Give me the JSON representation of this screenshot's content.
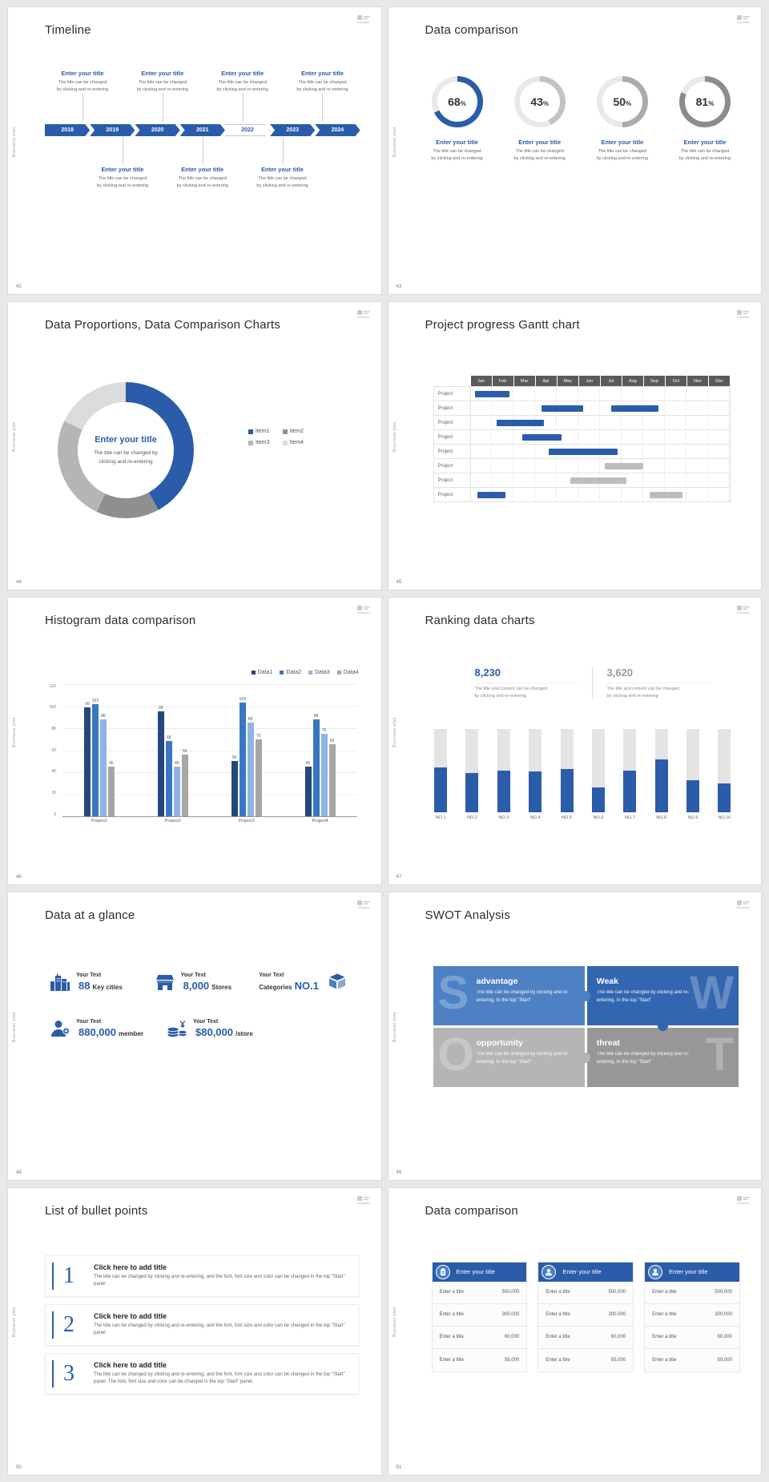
{
  "theme": {
    "accent_blue": "#2a5caa",
    "gray": "#b3b3b3",
    "dark_gray": "#8c8c8c",
    "track_gray": "#e9e9e9"
  },
  "common": {
    "vertical_label": "Business plan"
  },
  "s42": {
    "page": "42",
    "title": "Timeline",
    "item_title": "Enter your title",
    "item_body1": "The title can be changed",
    "item_body2": "by clicking and re-entering",
    "years": [
      {
        "label": "2018",
        "bg": "#2a5caa",
        "fg": "#ffffff"
      },
      {
        "label": "2019",
        "bg": "#2a5caa",
        "fg": "#ffffff"
      },
      {
        "label": "2020",
        "bg": "#2a5caa",
        "fg": "#ffffff"
      },
      {
        "label": "2021",
        "bg": "#2a5caa",
        "fg": "#ffffff"
      },
      {
        "label": "2022",
        "bg": "#ffffff",
        "fg": "#2a5caa",
        "outline": true
      },
      {
        "label": "2023",
        "bg": "#2a5caa",
        "fg": "#ffffff"
      },
      {
        "label": "2024",
        "bg": "#2a5caa",
        "fg": "#ffffff"
      }
    ]
  },
  "s43": {
    "page": "43",
    "title": "Data comparison",
    "item_title": "Enter your title",
    "item_body1": "The title can be changed",
    "item_body2": "by clicking and re-entering"
  },
  "s44": {
    "page": "44",
    "title": "Data Proportions, Data Comparison Charts",
    "center_title": "Enter your title",
    "center_body1": "The title can be changed by",
    "center_body2": "clicking and re-entering"
  },
  "s45": {
    "page": "45",
    "title": "Project progress Gantt chart"
  },
  "s46": {
    "page": "46",
    "title": "Histogram data comparison"
  },
  "s47": {
    "page": "47",
    "title": "Ranking data charts",
    "stat1": {
      "value": "8,230",
      "color": "#2a5caa"
    },
    "stat2": {
      "value": "3,620",
      "color": "#9b9b9b"
    },
    "stat_body1": "The title and content can be changed",
    "stat_body2": "by clicking and re-entering"
  },
  "s48": {
    "page": "48",
    "title": "Data at a glance",
    "items": [
      {
        "label": "Your Text",
        "prefix": "",
        "value": "88",
        "unit": "Key cities"
      },
      {
        "label": "Your Text",
        "prefix": "",
        "value": "8,000",
        "unit": "Stores"
      },
      {
        "label": "Your Text",
        "prefix": "Categories",
        "value": "NO.1",
        "unit": ""
      },
      {
        "label": "Your Text",
        "prefix": "",
        "value": "880,000",
        "unit": "member"
      },
      {
        "label": "Your Text",
        "prefix": "",
        "value": "$80,000",
        "unit": "/store"
      }
    ]
  },
  "s49": {
    "page": "49",
    "title": "SWOT Analysis",
    "tiles": [
      {
        "letter": "S",
        "heading": "advantage",
        "body": "The title can be changed by clicking and re-entering. In the top \"Start\"",
        "color": "#4e80c4"
      },
      {
        "letter": "W",
        "heading": "Weak",
        "body": "The title can be changed by clicking and re-entering. In the top \"Start\"",
        "color": "#3366b0"
      },
      {
        "letter": "O",
        "heading": "opportunity",
        "body": "The title can be changed by clicking and re-entering. In the top \"Start\"",
        "color": "#b5b5b5"
      },
      {
        "letter": "T",
        "heading": "threat",
        "body": "The title can be changed by clicking and re-entering. In the top \"Start\"",
        "color": "#979797"
      }
    ]
  },
  "s50": {
    "page": "50",
    "title": "List of bullet points",
    "items": [
      {
        "num": "1",
        "heading": "Click here to add title",
        "body": "The title can be changed by clicking and re-entering, and the font, font size and color can be changed in the top \"Start\" panel"
      },
      {
        "num": "2",
        "heading": "Click here to add title",
        "body": "The title can be changed by clicking and re-entering, and the font, font size and color can be changed in the top \"Start\" panel"
      },
      {
        "num": "3",
        "heading": "Click here to add title",
        "body": "The title can be changed by clicking and re-entering, and the font, font size and color can be changed in the top \"Start\" panel. The font, font size and color can be changed in the top \"Start\" panel."
      }
    ]
  },
  "s51": {
    "page": "51",
    "title": "Data comparison",
    "header": "Enter your title",
    "rows": [
      [
        "Enter a title",
        "500,000"
      ],
      [
        "Enter a title",
        "300,000"
      ],
      [
        "Enter a title",
        "60,000"
      ],
      [
        "Enter a title",
        "55,000"
      ]
    ]
  },
  "chart_data": [
    {
      "id": "percentage-gauges",
      "type": "pie",
      "title": "Data comparison",
      "values": [
        68,
        43,
        50,
        81
      ],
      "suffix": "%",
      "colors": [
        "#2a5caa",
        "#c3c3c3",
        "#ababab",
        "#8c8c8c"
      ],
      "track": "#e9e9e9",
      "labels": [
        "Enter your title",
        "Enter your title",
        "Enter your title",
        "Enter your title"
      ]
    },
    {
      "id": "proportion-donut",
      "type": "pie",
      "title": "Data Proportions, Data Comparison Charts",
      "labels": [
        "Item1",
        "Item2",
        "Item3",
        "Item4"
      ],
      "values": [
        42,
        15,
        25,
        18
      ],
      "colors": [
        "#2a5caa",
        "#8f8f8f",
        "#b5b5b5",
        "#dcdcdc"
      ]
    },
    {
      "id": "gantt",
      "type": "table",
      "title": "Project progress Gantt chart",
      "columns": [
        "Jan",
        "Feb",
        "Mar",
        "Apr",
        "May",
        "Jun",
        "Jul",
        "Aug",
        "Sep",
        "Oct",
        "Nov",
        "Dec"
      ],
      "rows": [
        "Project",
        "Project",
        "Project",
        "Project",
        "Project",
        "Project",
        "Project",
        "Project"
      ],
      "bars": [
        {
          "row": 0,
          "start": 0.2,
          "span": 1.6,
          "color": "#2a5caa"
        },
        {
          "row": 1,
          "start": 3.3,
          "span": 1.9,
          "color": "#2a5caa"
        },
        {
          "row": 1,
          "start": 6.5,
          "span": 2.2,
          "color": "#2a5caa"
        },
        {
          "row": 2,
          "start": 1.2,
          "span": 2.2,
          "color": "#2a5caa"
        },
        {
          "row": 3,
          "start": 2.4,
          "span": 1.8,
          "color": "#2a5caa"
        },
        {
          "row": 4,
          "start": 3.6,
          "span": 3.2,
          "color": "#2a5caa"
        },
        {
          "row": 5,
          "start": 6.2,
          "span": 1.8,
          "color": "#bdbdbd"
        },
        {
          "row": 6,
          "start": 4.6,
          "span": 2.6,
          "color": "#bdbdbd"
        },
        {
          "row": 7,
          "start": 0.3,
          "span": 1.3,
          "color": "#2a5caa"
        },
        {
          "row": 7,
          "start": 8.3,
          "span": 1.5,
          "color": "#bdbdbd"
        }
      ]
    },
    {
      "id": "histogram",
      "type": "bar",
      "title": "Histogram data comparison",
      "categories": [
        "Project1",
        "Project2",
        "Project3",
        "Project4"
      ],
      "series": [
        {
          "name": "Data1",
          "color": "#24477e",
          "values": [
            99,
            95,
            50,
            45
          ]
        },
        {
          "name": "Data2",
          "color": "#3a77c2",
          "values": [
            102,
            68,
            103,
            88
          ]
        },
        {
          "name": "Data3",
          "color": "#8fb4e3",
          "values": [
            88,
            45,
            85,
            75
          ]
        },
        {
          "name": "Data4",
          "color": "#a6a6a6",
          "values": [
            45,
            56,
            70,
            65
          ]
        }
      ],
      "ylim": [
        0,
        120
      ],
      "yticks": [
        0,
        20,
        40,
        60,
        80,
        100,
        120
      ]
    },
    {
      "id": "ranking",
      "type": "bar",
      "title": "Ranking data charts",
      "categories": [
        "NO.1",
        "NO.2",
        "NO.3",
        "NO.4",
        "NO.5",
        "NO.6",
        "NO.7",
        "NO.8",
        "NO.9",
        "NO.10"
      ],
      "values": [
        54,
        47,
        50,
        49,
        52,
        30,
        50,
        63,
        38,
        34
      ],
      "track": 100,
      "bar_color": "#2a5caa",
      "track_color": "#e4e4e4"
    }
  ]
}
